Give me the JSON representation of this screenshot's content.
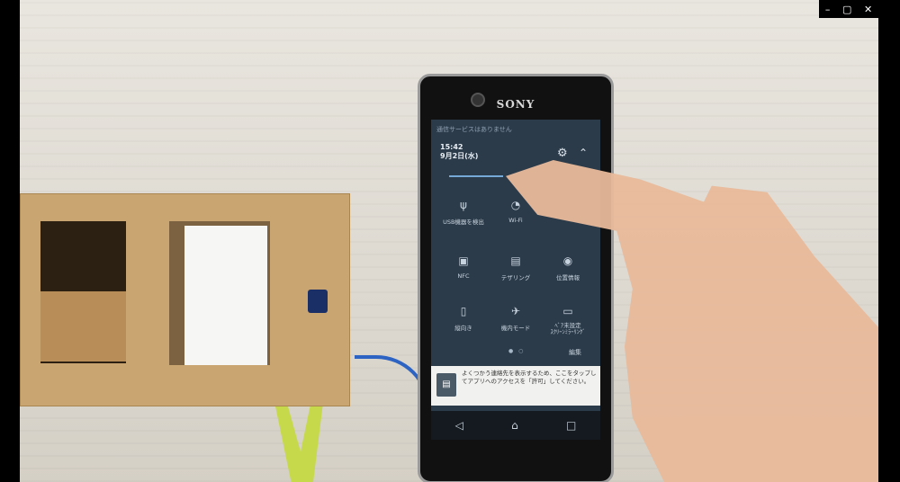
{
  "window": {
    "controls": [
      "–",
      "▢",
      "✕"
    ]
  },
  "phone": {
    "brand": "SONY",
    "status_text": "通信サービスはありません",
    "time": "15:42",
    "date": "9月2日(水)",
    "tiles": [
      {
        "icon": "usb-icon",
        "glyph": "ψ",
        "label": "USB機器を検出"
      },
      {
        "icon": "wifi-icon",
        "glyph": "◔",
        "label": "Wi-Fi"
      },
      {
        "icon": "nfc-icon",
        "glyph": "▣",
        "label": "NFC"
      },
      {
        "icon": "tethering-icon",
        "glyph": "▤",
        "label": "テザリング"
      },
      {
        "icon": "location-icon",
        "glyph": "◉",
        "label": "位置情報"
      },
      {
        "icon": "portrait-icon",
        "glyph": "▯",
        "label": "縦向き"
      },
      {
        "icon": "airplane-icon",
        "glyph": "✈",
        "label": "機内モード"
      },
      {
        "icon": "screen-mirroring-icon",
        "glyph": "▭",
        "label": "ﾍﾞｱ未設定\nｽｸﾘｰﾝﾐﾗｰﾘﾝｸﾞ"
      }
    ],
    "edit_label": "編集",
    "notification_text": "よくつかう連絡先を表示するため、ここをタップしてアプリへのアクセスを「許可」してください。",
    "nav": [
      "◁",
      "⌂",
      "□"
    ]
  },
  "colors": {
    "screen_bg": "#2c3b4a",
    "accent": "#77a9d8",
    "cable": "#2d63c2",
    "wood": "#c9a572"
  }
}
